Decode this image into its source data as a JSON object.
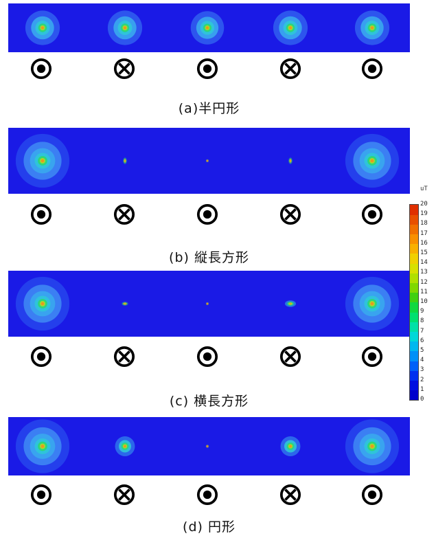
{
  "panels": [
    {
      "caption": "(a)半円形",
      "symbols": [
        "out",
        "in",
        "out",
        "in",
        "out"
      ],
      "spots": [
        {
          "intensity": 0.85,
          "shape": "round"
        },
        {
          "intensity": 0.85,
          "shape": "round"
        },
        {
          "intensity": 0.8,
          "shape": "round"
        },
        {
          "intensity": 0.85,
          "shape": "round"
        },
        {
          "intensity": 0.85,
          "shape": "round"
        }
      ]
    },
    {
      "caption": "(b) 縦長方形",
      "symbols": [
        "out",
        "in",
        "out",
        "in",
        "out"
      ],
      "spots": [
        {
          "intensity": 1.0,
          "shape": "round"
        },
        {
          "intensity": 0.45,
          "shape": "vertical"
        },
        {
          "intensity": 0.2,
          "shape": "round"
        },
        {
          "intensity": 0.45,
          "shape": "vertical"
        },
        {
          "intensity": 1.0,
          "shape": "round"
        }
      ]
    },
    {
      "caption": "(c) 横長方形",
      "symbols": [
        "out",
        "in",
        "out",
        "in",
        "out"
      ],
      "spots": [
        {
          "intensity": 1.0,
          "shape": "round"
        },
        {
          "intensity": 0.45,
          "shape": "horizontal"
        },
        {
          "intensity": 0.2,
          "shape": "round"
        },
        {
          "intensity": 0.5,
          "shape": "horizontal"
        },
        {
          "intensity": 1.0,
          "shape": "round"
        }
      ]
    },
    {
      "caption": "(d) 円形",
      "symbols": [
        "out",
        "in",
        "out",
        "in",
        "out"
      ],
      "spots": [
        {
          "intensity": 1.0,
          "shape": "round"
        },
        {
          "intensity": 0.65,
          "shape": "round"
        },
        {
          "intensity": 0.25,
          "shape": "round"
        },
        {
          "intensity": 0.65,
          "shape": "round"
        },
        {
          "intensity": 1.0,
          "shape": "round"
        }
      ]
    }
  ],
  "legend": {
    "unit": "uT",
    "ticks": [
      "20",
      "19",
      "18",
      "17",
      "16",
      "15",
      "14",
      "13",
      "12",
      "11",
      "10",
      "9",
      "8",
      "7",
      "6",
      "5",
      "4",
      "3",
      "2",
      "1",
      "0"
    ],
    "colors": [
      "#0000cc",
      "#0010e0",
      "#0030f0",
      "#0060f8",
      "#0090f8",
      "#00b8f0",
      "#00d8d8",
      "#00e0a8",
      "#00e070",
      "#10d840",
      "#40d010",
      "#80d800",
      "#b0e000",
      "#d8e000",
      "#f0d000",
      "#f8b000",
      "#f89000",
      "#f07000",
      "#e85000",
      "#e03000"
    ]
  }
}
